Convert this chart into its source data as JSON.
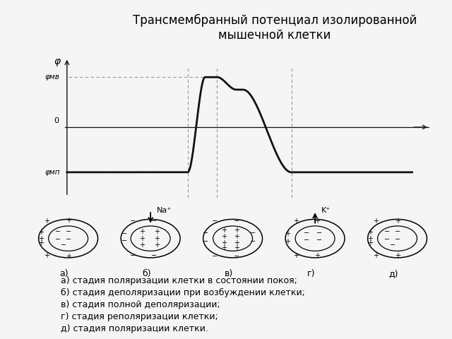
{
  "title": "Трансмембранный потенциал изолированной\nмышечной клетки",
  "title_bg": "#e8dfc0",
  "background_color": "#f5f5f5",
  "plot_bg": "#f5f5f5",
  "ylabel": "φ",
  "y_mp_label": "φмп",
  "y_mb_label": "φмв",
  "zero_label": "0",
  "legend_bg": "#e8dfc0",
  "legend_lines": [
    "а) стадия поляризации клетки в состоянии покоя;",
    "б) стадия деполяризации при возбуждении клетки;",
    "в) стадия полной деполяризации;",
    "г) стадия реполяризации клетки;",
    "д) стадия поляризации клетки."
  ],
  "stage_labels": [
    "а)",
    "б)",
    "в)",
    "г)",
    "д)"
  ],
  "na_label": "Na⁺",
  "k_label": "K⁺",
  "line_color": "#111111",
  "dashed_color": "#999999"
}
